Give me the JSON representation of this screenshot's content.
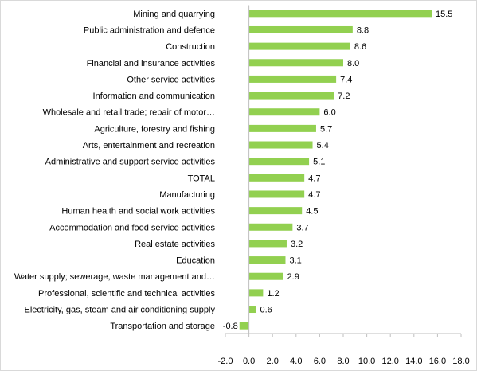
{
  "chart_data": {
    "type": "bar",
    "orientation": "horizontal",
    "categories": [
      "Mining and quarrying",
      "Public administration and defence",
      "Construction",
      "Financial and insurance activities",
      "Other service activities",
      "Information and communication",
      "Wholesale and retail trade; repair of motor…",
      "Agriculture, forestry and fishing",
      "Arts, entertainment and recreation",
      "Administrative and support service activities",
      "TOTAL",
      "Manufacturing",
      "Human health and social work activities",
      "Accommodation and food service activities",
      "Real estate activities",
      "Education",
      "Water supply; sewerage, waste management and…",
      "Professional, scientific and technical activities",
      "Electricity, gas, steam and air conditioning supply",
      "Transportation and storage"
    ],
    "values": [
      15.5,
      8.8,
      8.6,
      8.0,
      7.4,
      7.2,
      6.0,
      5.7,
      5.4,
      5.1,
      4.7,
      4.7,
      4.5,
      3.7,
      3.2,
      3.1,
      2.9,
      1.2,
      0.6,
      -0.8
    ],
    "value_labels": [
      "15.5",
      "8.8",
      "8.6",
      "8.0",
      "7.4",
      "7.2",
      "6.0",
      "5.7",
      "5.4",
      "5.1",
      "4.7",
      "4.7",
      "4.5",
      "3.7",
      "3.2",
      "3.1",
      "2.9",
      "1.2",
      "0.6",
      "-0.8"
    ],
    "xlim": [
      -2.0,
      18.0
    ],
    "x_ticks": [
      "-2.0",
      "0.0",
      "2.0",
      "4.0",
      "6.0",
      "8.0",
      "10.0",
      "12.0",
      "14.0",
      "16.0",
      "18.0"
    ],
    "title": "",
    "xlabel": "",
    "ylabel": "",
    "grid": false,
    "legend": "none",
    "bar_color": "#92d050",
    "axis_color": "#bfbfbf"
  }
}
